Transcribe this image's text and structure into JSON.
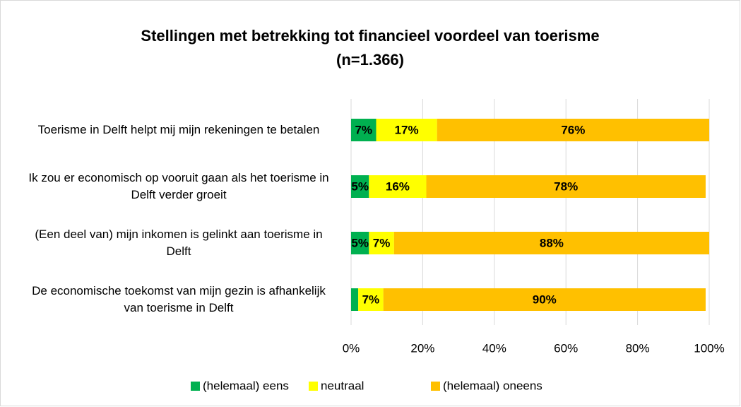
{
  "chart_data": {
    "type": "stacked-bar-horizontal",
    "title": "Stellingen met betrekking tot financieel voordeel van toerisme",
    "subtitle": "(n=1.366)",
    "categories": [
      "Toerisme in Delft helpt mij mijn rekeningen te betalen",
      "Ik zou er economisch op vooruit gaan als het toerisme in Delft verder groeit",
      "(Een deel van) mijn inkomen is gelinkt aan toerisme in Delft",
      "De economische toekomst van mijn gezin is afhankelijk van toerisme in Delft"
    ],
    "series": [
      {
        "name": "(helemaal) eens",
        "color": "#00b050",
        "values": [
          7,
          5,
          5,
          2
        ],
        "value_labels": [
          "7%",
          "5%",
          "5%",
          null
        ]
      },
      {
        "name": "neutraal",
        "color": "#ffff00",
        "values": [
          17,
          16,
          7,
          7
        ],
        "value_labels": [
          "17%",
          "16%",
          "7%",
          "7%"
        ]
      },
      {
        "name": "(helemaal) oneens",
        "color": "#ffc000",
        "values": [
          76,
          78,
          88,
          90
        ],
        "value_labels": [
          "76%",
          "78%",
          "88%",
          "90%"
        ]
      }
    ],
    "xlim": [
      0,
      100
    ],
    "xticks": [
      {
        "value": 0,
        "label": "0%"
      },
      {
        "value": 20,
        "label": "20%"
      },
      {
        "value": 40,
        "label": "40%"
      },
      {
        "value": 60,
        "label": "60%"
      },
      {
        "value": 80,
        "label": "80%"
      },
      {
        "value": 100,
        "label": "100%"
      }
    ],
    "grid": true,
    "legend": "bottom"
  }
}
